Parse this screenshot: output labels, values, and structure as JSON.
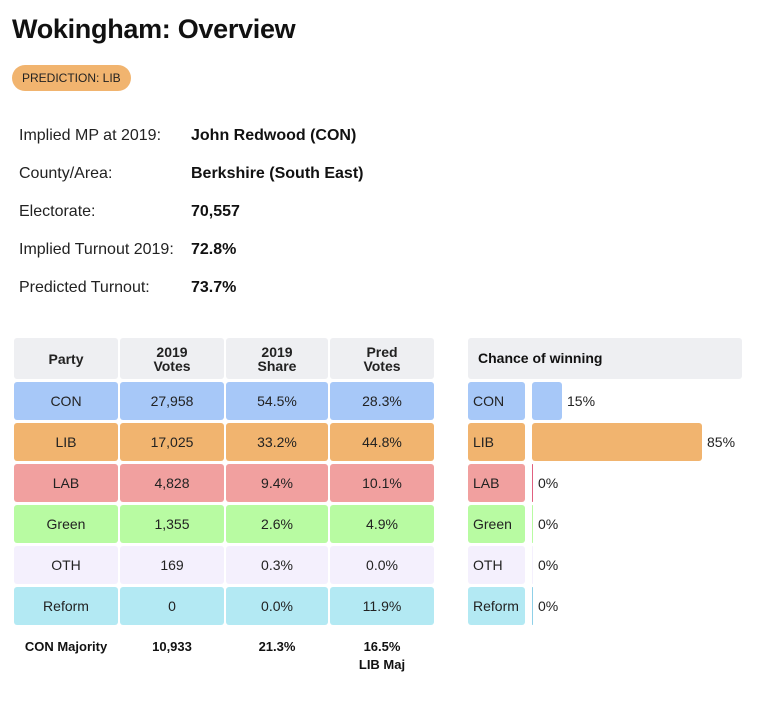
{
  "page": {
    "title": "Wokingham: Overview",
    "prediction_badge": "PREDICTION: LIB"
  },
  "info": [
    {
      "label": "Implied MP at 2019:",
      "value": "John Redwood  (CON)"
    },
    {
      "label": "County/Area:",
      "value": "Berkshire (South East)"
    },
    {
      "label": "Electorate:",
      "value": "70,557"
    },
    {
      "label": "Implied Turnout 2019:",
      "value": "72.8%"
    },
    {
      "label": "Predicted Turnout:",
      "value": "73.7%"
    }
  ],
  "table": {
    "headers": [
      "Party",
      "2019 Votes",
      "2019 Share",
      "Pred Votes"
    ],
    "rows": [
      {
        "party": "CON",
        "votes2019": "27,958",
        "share2019": "54.5%",
        "pred": "28.3%",
        "color": "#a7c8f8"
      },
      {
        "party": "LIB",
        "votes2019": "17,025",
        "share2019": "33.2%",
        "pred": "44.8%",
        "color": "#f1b46f"
      },
      {
        "party": "LAB",
        "votes2019": "4,828",
        "share2019": "9.4%",
        "pred": "10.1%",
        "color": "#f1a09f"
      },
      {
        "party": "Green",
        "votes2019": "1,355",
        "share2019": "2.6%",
        "pred": "4.9%",
        "color": "#b8fba2"
      },
      {
        "party": "OTH",
        "votes2019": "169",
        "share2019": "0.3%",
        "pred": "0.0%",
        "color": "#f4f0fd"
      },
      {
        "party": "Reform",
        "votes2019": "0",
        "share2019": "0.0%",
        "pred": "11.9%",
        "color": "#b3e9f3"
      }
    ],
    "footer": {
      "label": "CON Majority",
      "votes": "10,933",
      "share": "21.3%",
      "pred": "16.5%",
      "pred_note": "LIB Maj"
    }
  },
  "chart_data": {
    "type": "bar",
    "title": "Chance of winning",
    "categories": [
      "CON",
      "LIB",
      "LAB",
      "Green",
      "OTH",
      "Reform"
    ],
    "values": [
      15,
      85,
      0,
      0,
      0,
      0
    ],
    "labels": [
      "15%",
      "85%",
      "0%",
      "0%",
      "0%",
      "0%"
    ],
    "colors": [
      "#a7c8f8",
      "#f1b46f",
      "#f1a09f",
      "#b8fba2",
      "#f4f0fd",
      "#b3e9f3"
    ],
    "bar_colors": [
      "#a7c8f8",
      "#f1b46f",
      "#e0607f",
      "#b8fba2",
      "#f4f0fd",
      "#8fd0e8"
    ],
    "xlim": [
      0,
      100
    ]
  }
}
